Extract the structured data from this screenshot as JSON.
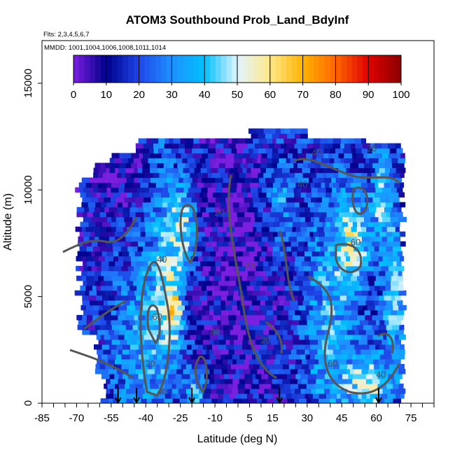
{
  "chart_data": {
    "type": "heatmap",
    "title": "ATOM3 Southbound Prob_Land_BdyInf",
    "annotations": {
      "flights": "Flts: 2,3,4,5,6,7",
      "dates": "MMDD: 1001,1004,1006,1008,1011,1014"
    },
    "xlabel": "Latitude (deg N)",
    "ylabel": "Altitude (m)",
    "xlim": [
      -85,
      85
    ],
    "ylim": [
      0,
      17000
    ],
    "x_ticks": [
      -85,
      -70,
      -55,
      -40,
      -25,
      -10,
      5,
      15,
      30,
      45,
      60,
      75
    ],
    "y_ticks": [
      0,
      5000,
      10000,
      15000
    ],
    "colorbar": {
      "ticks": [
        0,
        10,
        20,
        30,
        40,
        50,
        60,
        70,
        80,
        90,
        100
      ],
      "range": [
        0,
        100
      ],
      "colors": [
        "#7a1fe0",
        "#00008b",
        "#1f46e8",
        "#1e90ff",
        "#00c0ff",
        "#e0f4ff",
        "#ffe88a",
        "#ffb400",
        "#ff6600",
        "#e00000",
        "#8b0000"
      ]
    },
    "contour_labels": [
      {
        "text": "40",
        "lat": 34,
        "alt": 11600
      },
      {
        "text": "20",
        "lat": 58,
        "alt": 11800
      },
      {
        "text": "40",
        "lat": 28,
        "alt": 10100
      },
      {
        "text": "20",
        "lat": -8,
        "alt": 8800
      },
      {
        "text": "60",
        "lat": 51,
        "alt": 7400
      },
      {
        "text": "40",
        "lat": -33,
        "alt": 6600
      },
      {
        "text": "20",
        "lat": 5,
        "alt": 6300
      },
      {
        "text": "60",
        "lat": -35,
        "alt": 3900
      },
      {
        "text": "20",
        "lat": 12,
        "alt": 2800
      },
      {
        "text": "40",
        "lat": -10,
        "alt": 3200
      },
      {
        "text": "60",
        "lat": 41,
        "alt": 1700
      },
      {
        "text": "40",
        "lat": 62,
        "alt": 1200
      },
      {
        "text": "40",
        "lat": -33,
        "alt": 400
      },
      {
        "text": "20",
        "lat": -38,
        "alt": 1700
      }
    ],
    "markers": [
      {
        "lat": -52
      },
      {
        "lat": -44
      },
      {
        "lat": -20
      },
      {
        "lat": 18
      },
      {
        "lat": 61
      }
    ]
  }
}
